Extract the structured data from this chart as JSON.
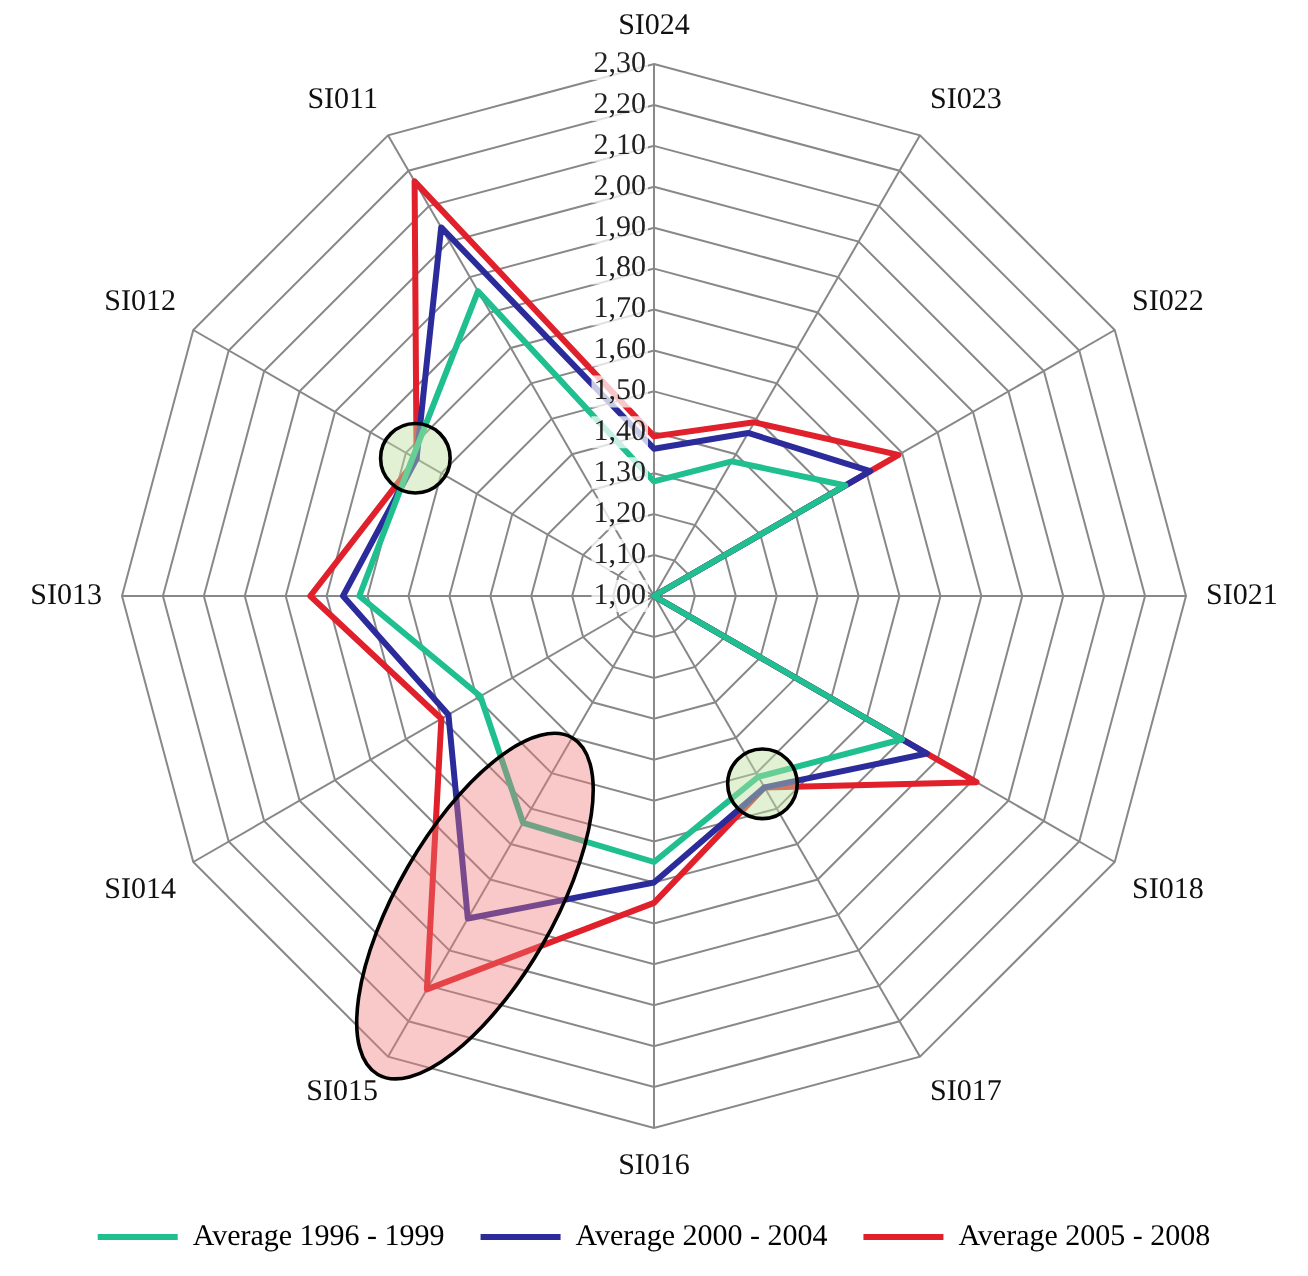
{
  "chart_data": {
    "type": "radar",
    "categories": [
      "SI024",
      "SI023",
      "SI022",
      "SI021",
      "SI018",
      "SI017",
      "SI016",
      "SI015",
      "SI014",
      "SI013",
      "SI012",
      "SI011"
    ],
    "series": [
      {
        "name": "Average 1996 - 1999",
        "color": "#1fbf8f",
        "values": [
          1.28,
          1.38,
          1.54,
          1.0,
          1.7,
          1.51,
          1.65,
          1.64,
          1.49,
          1.72,
          1.68,
          1.86
        ]
      },
      {
        "name": "Average 2000 - 2004",
        "color": "#2b2b9b",
        "values": [
          1.36,
          1.46,
          1.61,
          1.0,
          1.77,
          1.54,
          1.7,
          1.91,
          1.58,
          1.76,
          1.67,
          2.04
        ]
      },
      {
        "name": "Average 2005 - 2008",
        "color": "#e0202a",
        "values": [
          1.39,
          1.49,
          1.69,
          1.0,
          1.91,
          1.54,
          1.75,
          2.11,
          1.6,
          1.84,
          1.67,
          2.17
        ]
      }
    ],
    "ylim": [
      1.0,
      2.3
    ],
    "yticks": [
      {
        "value": 1.0,
        "label": "1,00"
      },
      {
        "value": 1.1,
        "label": "1,10"
      },
      {
        "value": 1.2,
        "label": "1,20"
      },
      {
        "value": 1.3,
        "label": "1,30"
      },
      {
        "value": 1.4,
        "label": "1,40"
      },
      {
        "value": 1.5,
        "label": "1,50"
      },
      {
        "value": 1.6,
        "label": "1,60"
      },
      {
        "value": 1.7,
        "label": "1,70"
      },
      {
        "value": 1.8,
        "label": "1,80"
      },
      {
        "value": 1.9,
        "label": "1,90"
      },
      {
        "value": 2.0,
        "label": "2,00"
      },
      {
        "value": 2.1,
        "label": "2,10"
      },
      {
        "value": 2.2,
        "label": "2,20"
      },
      {
        "value": 2.3,
        "label": "2,30"
      }
    ],
    "grid": true,
    "legend": "bottom",
    "marker": "none"
  }
}
